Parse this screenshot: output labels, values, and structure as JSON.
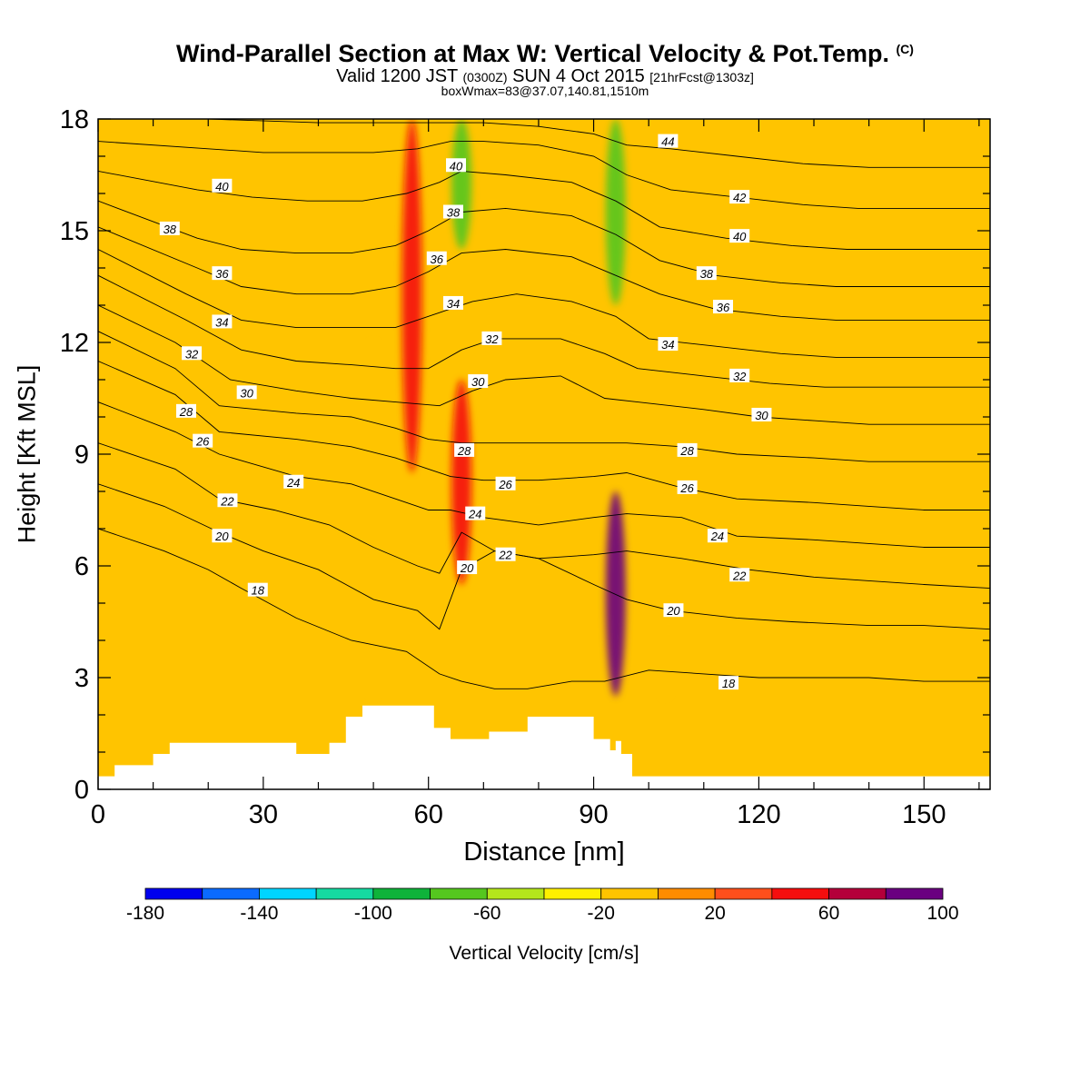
{
  "title": {
    "main": "Wind-Parallel Section at Max W: Vertical Velocity & Pot.Temp.",
    "copyright": "(C)",
    "valid_prefix": "Valid 1200 JST",
    "valid_utc": "(0300Z)",
    "valid_date": "SUN 4 Oct 2015",
    "forecast": "[21hrFcst@1303z]",
    "box_info": "boxWmax=83@37.07,140.81,1510m"
  },
  "chart_data": {
    "type": "heatmap",
    "xlabel": "Distance [nm]",
    "ylabel": "Height [Kft MSL]",
    "xlim": [
      0,
      162
    ],
    "ylim": [
      0,
      18
    ],
    "x_ticks": [
      0,
      30,
      60,
      90,
      120,
      150
    ],
    "y_ticks": [
      0,
      3,
      6,
      9,
      12,
      15,
      18
    ],
    "colorbar": {
      "label": "Vertical Velocity [cm/s]",
      "levels": [
        -180,
        -160,
        -140,
        -120,
        -100,
        -80,
        -60,
        -40,
        -20,
        0,
        20,
        40,
        60,
        80,
        100
      ],
      "tick_labels": [
        -180,
        -140,
        -100,
        -60,
        -20,
        20,
        60,
        100
      ],
      "colors": [
        "#0000ee",
        "#0b6bff",
        "#00d5ff",
        "#15d9a1",
        "#0fb33a",
        "#55c71f",
        "#b4e61c",
        "#fff000",
        "#ffc400",
        "#ff8c00",
        "#ff4f1c",
        "#f50e0e",
        "#b4003a",
        "#6a0080"
      ]
    },
    "terrain_profile": [
      [
        0,
        0.35
      ],
      [
        3,
        0.35
      ],
      [
        3,
        0.65
      ],
      [
        10,
        0.65
      ],
      [
        10,
        0.95
      ],
      [
        13,
        0.95
      ],
      [
        13,
        1.25
      ],
      [
        36,
        1.25
      ],
      [
        36,
        0.95
      ],
      [
        42,
        0.95
      ],
      [
        42,
        1.25
      ],
      [
        45,
        1.25
      ],
      [
        45,
        1.95
      ],
      [
        48,
        1.95
      ],
      [
        48,
        2.25
      ],
      [
        61,
        2.25
      ],
      [
        61,
        1.65
      ],
      [
        64,
        1.65
      ],
      [
        64,
        1.35
      ],
      [
        71,
        1.35
      ],
      [
        71,
        1.55
      ],
      [
        78,
        1.55
      ],
      [
        78,
        1.95
      ],
      [
        90,
        1.95
      ],
      [
        90,
        1.35
      ],
      [
        93,
        1.35
      ],
      [
        93,
        1.05
      ],
      [
        94,
        1.05
      ],
      [
        94,
        1.3
      ],
      [
        95,
        1.3
      ],
      [
        95,
        0.95
      ],
      [
        97,
        0.95
      ],
      [
        97,
        0.35
      ],
      [
        162,
        0.35
      ]
    ],
    "velocity_features": [
      {
        "x": 57,
        "z_range": [
          8.5,
          18
        ],
        "value": 50
      },
      {
        "x": 66,
        "z_range": [
          5.5,
          11
        ],
        "value": 45
      },
      {
        "x": 94,
        "z_range": [
          2.5,
          8
        ],
        "value": 85
      },
      {
        "x": 66,
        "z_range": [
          14.5,
          18
        ],
        "value": -75
      },
      {
        "x": 94,
        "z_range": [
          13,
          18
        ],
        "value": -65
      },
      {
        "x": 103,
        "z_range": [
          2.5,
          9
        ],
        "value": -20
      },
      {
        "x": 50,
        "z_range": [
          2.5,
          12
        ],
        "value": -20
      }
    ],
    "theta_contours": [
      {
        "value": 18,
        "x": [
          0,
          12,
          20,
          26,
          36,
          46,
          56,
          62,
          66,
          72,
          78,
          86,
          92,
          100,
          110,
          120,
          130,
          140,
          150,
          162
        ],
        "z": [
          7,
          6.4,
          5.9,
          5.4,
          4.6,
          4,
          3.7,
          3.1,
          2.9,
          2.7,
          2.7,
          2.9,
          2.9,
          3.2,
          3.1,
          3,
          3,
          3,
          2.9,
          2.9
        ]
      },
      {
        "value": 20,
        "x": [
          0,
          12,
          22,
          30,
          40,
          50,
          58,
          62,
          66,
          72,
          80,
          90,
          96,
          104,
          116,
          126,
          140,
          150,
          162
        ],
        "z": [
          8.2,
          7.6,
          6.9,
          6.4,
          5.9,
          5.1,
          4.8,
          4.3,
          5.9,
          6.4,
          6.2,
          5.5,
          5.1,
          4.8,
          4.6,
          4.5,
          4.4,
          4.4,
          4.3
        ]
      },
      {
        "value": 22,
        "x": [
          0,
          14,
          22,
          32,
          42,
          50,
          58,
          62,
          66,
          72,
          80,
          90,
          96,
          106,
          118,
          130,
          140,
          150,
          162
        ],
        "z": [
          9.3,
          8.6,
          7.8,
          7.5,
          7.1,
          6.5,
          6,
          5.8,
          6.9,
          6.4,
          6.2,
          6.3,
          6.4,
          6.2,
          5.9,
          5.7,
          5.6,
          5.5,
          5.4
        ]
      },
      {
        "value": 24,
        "x": [
          0,
          14,
          22,
          36,
          46,
          54,
          60,
          64,
          70,
          80,
          90,
          96,
          106,
          116,
          130,
          140,
          150,
          162
        ],
        "z": [
          10.4,
          9.6,
          9,
          8.4,
          8.2,
          7.8,
          7.5,
          7.5,
          7.3,
          7.1,
          7.3,
          7.4,
          7.3,
          6.8,
          6.7,
          6.6,
          6.5,
          6.5
        ]
      },
      {
        "value": 26,
        "x": [
          0,
          14,
          22,
          36,
          46,
          54,
          60,
          64,
          70,
          80,
          90,
          96,
          106,
          116,
          130,
          140,
          150,
          162
        ],
        "z": [
          11.5,
          10.6,
          9.6,
          9.4,
          9.2,
          8.9,
          8.6,
          8.4,
          8.3,
          8.3,
          8.4,
          8.5,
          8.1,
          7.8,
          7.7,
          7.6,
          7.5,
          7.5
        ]
      },
      {
        "value": 28,
        "x": [
          0,
          14,
          22,
          36,
          46,
          54,
          60,
          66,
          72,
          82,
          90,
          96,
          106,
          116,
          130,
          140,
          150,
          162
        ],
        "z": [
          12.3,
          11.3,
          10.3,
          10.1,
          10,
          9.7,
          9.4,
          9.3,
          9.3,
          9.3,
          9.3,
          9.3,
          9.2,
          9,
          8.9,
          8.8,
          8.8,
          8.8
        ]
      },
      {
        "value": 30,
        "x": [
          0,
          14,
          24,
          36,
          46,
          54,
          62,
          68,
          74,
          84,
          92,
          98,
          110,
          120,
          130,
          140,
          150,
          162
        ],
        "z": [
          13,
          12,
          11,
          10.7,
          10.5,
          10.4,
          10.3,
          10.7,
          11,
          11.1,
          10.5,
          10.4,
          10.2,
          10,
          9.9,
          9.8,
          9.8,
          9.8
        ]
      },
      {
        "value": 32,
        "x": [
          0,
          16,
          26,
          36,
          46,
          54,
          60,
          66,
          72,
          84,
          92,
          98,
          110,
          122,
          132,
          142,
          152,
          162
        ],
        "z": [
          13.8,
          12.6,
          11.8,
          11.5,
          11.4,
          11.3,
          11.3,
          11.8,
          12.1,
          12.1,
          11.7,
          11.3,
          11.1,
          10.9,
          10.8,
          10.8,
          10.8,
          10.8
        ]
      },
      {
        "value": 34,
        "x": [
          0,
          16,
          26,
          36,
          46,
          54,
          62,
          68,
          76,
          86,
          94,
          100,
          112,
          124,
          134,
          144,
          154,
          162
        ],
        "z": [
          14.5,
          13.3,
          12.6,
          12.4,
          12.4,
          12.4,
          12.8,
          13.1,
          13.3,
          13.1,
          12.7,
          12.1,
          11.9,
          11.7,
          11.6,
          11.6,
          11.6,
          11.6
        ]
      },
      {
        "value": 36,
        "x": [
          0,
          18,
          26,
          36,
          46,
          54,
          60,
          66,
          74,
          86,
          94,
          102,
          112,
          124,
          134,
          144,
          154,
          162
        ],
        "z": [
          15.1,
          14,
          13.5,
          13.3,
          13.3,
          13.5,
          13.9,
          14.4,
          14.5,
          14.3,
          13.8,
          13.3,
          12.9,
          12.7,
          12.6,
          12.6,
          12.6,
          12.6
        ]
      },
      {
        "value": 38,
        "x": [
          0,
          18,
          26,
          36,
          46,
          54,
          60,
          66,
          74,
          86,
          94,
          102,
          112,
          124,
          134,
          144,
          154,
          162
        ],
        "z": [
          15.8,
          14.8,
          14.5,
          14.4,
          14.4,
          14.6,
          15,
          15.5,
          15.6,
          15.4,
          14.9,
          14.2,
          13.8,
          13.6,
          13.5,
          13.5,
          13.5,
          13.5
        ]
      },
      {
        "value": 40,
        "x": [
          0,
          18,
          28,
          38,
          48,
          56,
          62,
          66,
          74,
          86,
          94,
          102,
          114,
          126,
          136,
          146,
          156,
          162
        ],
        "z": [
          16.6,
          16.1,
          15.9,
          15.8,
          15.8,
          16,
          16.3,
          16.6,
          16.5,
          16.3,
          15.8,
          15.1,
          14.8,
          14.6,
          14.5,
          14.5,
          14.5,
          14.5
        ]
      },
      {
        "value": 42,
        "x": [
          0,
          20,
          30,
          40,
          50,
          58,
          64,
          70,
          80,
          90,
          96,
          104,
          116,
          128,
          138,
          148,
          162
        ],
        "z": [
          17.4,
          17.2,
          17.1,
          17.1,
          17.1,
          17.2,
          17.4,
          17.4,
          17.3,
          17,
          16.5,
          16.1,
          15.9,
          15.7,
          15.6,
          15.6,
          15.6
        ]
      },
      {
        "value": 44,
        "x": [
          0,
          20,
          40,
          60,
          70,
          80,
          90,
          96,
          104,
          116,
          128,
          140,
          152,
          162
        ],
        "z": [
          18,
          18,
          17.9,
          17.9,
          17.9,
          17.8,
          17.6,
          17.3,
          17.2,
          17,
          16.8,
          16.7,
          16.7,
          16.7
        ]
      }
    ],
    "contour_labels": [
      {
        "text": "40",
        "x": 22.5,
        "z": 16.2
      },
      {
        "text": "38",
        "x": 13,
        "z": 15.05
      },
      {
        "text": "36",
        "x": 22.5,
        "z": 13.85
      },
      {
        "text": "34",
        "x": 22.5,
        "z": 12.55
      },
      {
        "text": "32",
        "x": 17,
        "z": 11.7
      },
      {
        "text": "30",
        "x": 27,
        "z": 10.65
      },
      {
        "text": "28",
        "x": 16,
        "z": 10.15
      },
      {
        "text": "26",
        "x": 19,
        "z": 9.35
      },
      {
        "text": "24",
        "x": 35.5,
        "z": 8.25
      },
      {
        "text": "22",
        "x": 23.5,
        "z": 7.75
      },
      {
        "text": "20",
        "x": 22.5,
        "z": 6.8
      },
      {
        "text": "18",
        "x": 29,
        "z": 5.35
      },
      {
        "text": "40",
        "x": 65,
        "z": 16.75
      },
      {
        "text": "38",
        "x": 64.5,
        "z": 15.5
      },
      {
        "text": "36",
        "x": 61.5,
        "z": 14.25
      },
      {
        "text": "34",
        "x": 64.5,
        "z": 13.05
      },
      {
        "text": "32",
        "x": 71.5,
        "z": 12.1
      },
      {
        "text": "30",
        "x": 69,
        "z": 10.95
      },
      {
        "text": "28",
        "x": 66.5,
        "z": 9.1
      },
      {
        "text": "26",
        "x": 74,
        "z": 8.2
      },
      {
        "text": "24",
        "x": 68.5,
        "z": 7.4
      },
      {
        "text": "22",
        "x": 74,
        "z": 6.3
      },
      {
        "text": "20",
        "x": 67,
        "z": 5.95
      },
      {
        "text": "44",
        "x": 103.5,
        "z": 17.4
      },
      {
        "text": "42",
        "x": 116.5,
        "z": 15.9
      },
      {
        "text": "40",
        "x": 116.5,
        "z": 14.85
      },
      {
        "text": "38",
        "x": 110.5,
        "z": 13.85
      },
      {
        "text": "36",
        "x": 113.5,
        "z": 12.95
      },
      {
        "text": "34",
        "x": 103.5,
        "z": 11.95
      },
      {
        "text": "32",
        "x": 116.5,
        "z": 11.1
      },
      {
        "text": "30",
        "x": 120.5,
        "z": 10.05
      },
      {
        "text": "28",
        "x": 107,
        "z": 9.1
      },
      {
        "text": "26",
        "x": 107,
        "z": 8.1
      },
      {
        "text": "24",
        "x": 112.5,
        "z": 6.8
      },
      {
        "text": "22",
        "x": 116.5,
        "z": 5.75
      },
      {
        "text": "20",
        "x": 104.5,
        "z": 4.8
      },
      {
        "text": "18",
        "x": 114.5,
        "z": 2.85
      }
    ]
  }
}
